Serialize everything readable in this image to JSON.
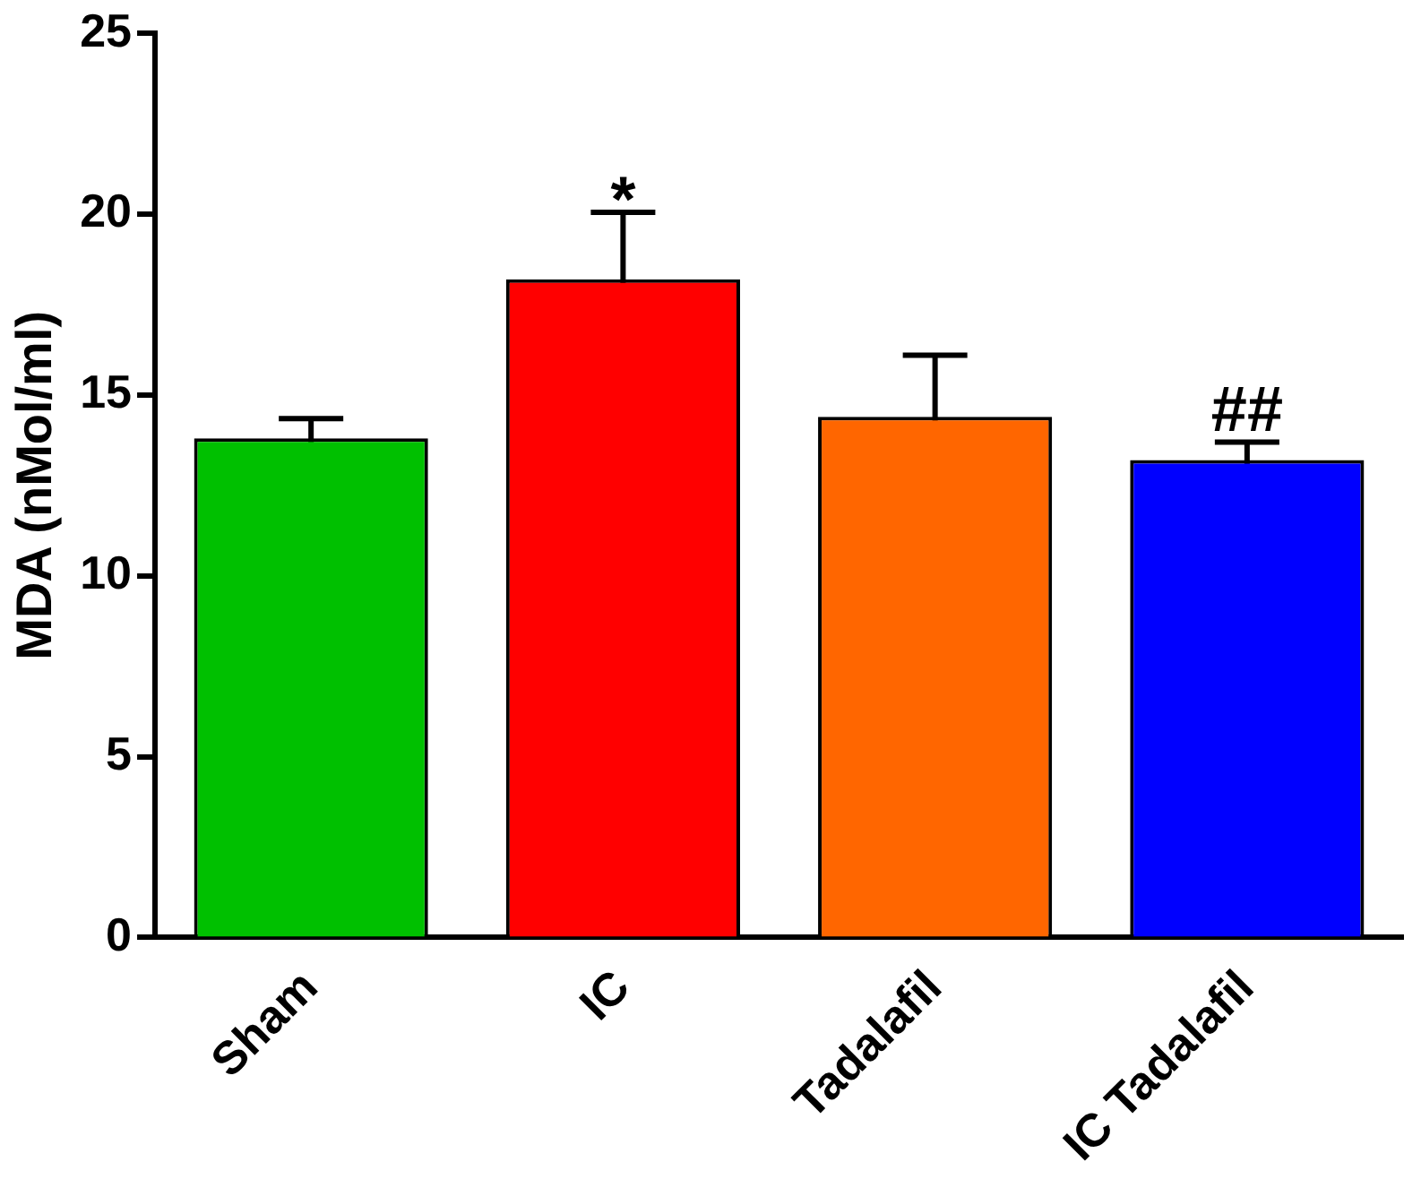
{
  "chart_data": {
    "type": "bar",
    "ylabel": "MDA (nMol/ml)",
    "categories": [
      "Sham",
      "IC",
      "Tadalafil",
      "IC Tadalafil"
    ],
    "values": [
      13.8,
      18.2,
      14.4,
      13.2
    ],
    "colors": [
      "#00c000",
      "#ff0000",
      "#ff6600",
      "#0000ff"
    ],
    "errors": [
      0.55,
      1.85,
      1.7,
      0.5
    ],
    "ylim": [
      0,
      25
    ],
    "yticks": [
      0,
      5,
      10,
      15,
      20,
      25
    ],
    "grid": false,
    "legend": false,
    "annotations": [
      {
        "text": "*",
        "x": "IC",
        "y": 20.0
      },
      {
        "text": "##",
        "x": "IC Tadalafil",
        "y": 13.7
      }
    ]
  }
}
